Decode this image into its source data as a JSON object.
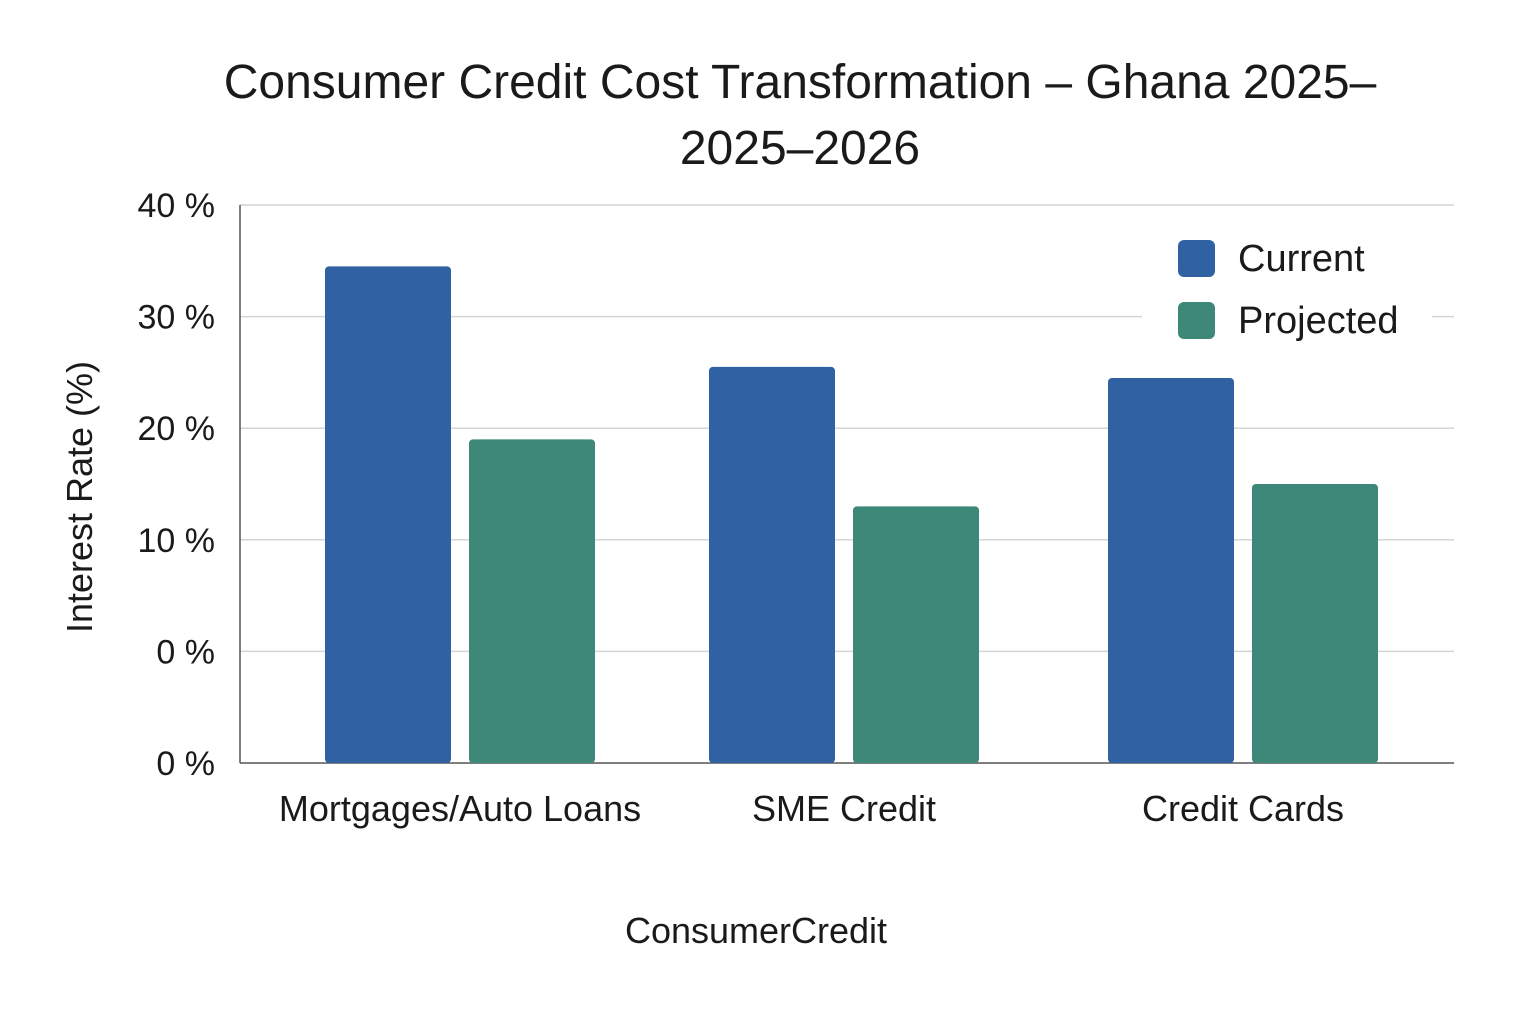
{
  "chart_data": {
    "type": "bar",
    "title": "Consumer Credit Cost Transformation – Ghana 2025–",
    "subtitle": "2025–2026",
    "xlabel": "ConsumerCredit",
    "ylabel": "Interest Rate (%)",
    "categories": [
      "Mortgages/Auto Loans",
      "SME Credit",
      "Credit Cards"
    ],
    "series": [
      {
        "name": "Current",
        "color": "#3062a3",
        "values": [
          34.5,
          25.5,
          24.5
        ]
      },
      {
        "name": "Projected",
        "color": "#3d8878",
        "values": [
          19,
          13,
          15
        ]
      }
    ],
    "y_tick_labels": [
      "0 %",
      "0 %",
      "10 %",
      "20 %",
      "30 %",
      "40 %"
    ],
    "ylim": [
      -10,
      40
    ],
    "grid": true,
    "legend_position": "top-right"
  }
}
